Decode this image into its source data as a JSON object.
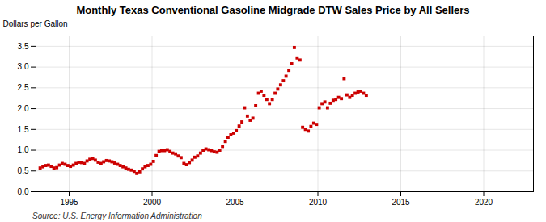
{
  "chart_data": {
    "type": "scatter",
    "title": "Monthly Texas Conventional Gasoline Midgrade DTW Sales Price by All Sellers",
    "ylabel": "Dollars per Gallon",
    "source": "Source: U.S. Energy Information Administration",
    "color": "#CC0000",
    "marker": "square",
    "grid": true,
    "xlim": [
      1993.0,
      2023.0
    ],
    "ylim": [
      0.0,
      3.75
    ],
    "xticks": [
      1995,
      2000,
      2005,
      2010,
      2015,
      2020
    ],
    "yticks": [
      {
        "value": 0.0,
        "label": "0.0"
      },
      0.5,
      {
        "value": 1.0,
        "label": "1.0"
      },
      1.5,
      {
        "value": 2.0,
        "label": "2.0"
      },
      2.5,
      {
        "value": 3.0,
        "label": "3.0"
      },
      3.5
    ],
    "x": [
      1993.25,
      1993.42,
      1993.58,
      1993.75,
      1993.92,
      1994.08,
      1994.25,
      1994.42,
      1994.58,
      1994.75,
      1994.92,
      1995.08,
      1995.25,
      1995.42,
      1995.58,
      1995.75,
      1995.92,
      1996.08,
      1996.25,
      1996.42,
      1996.58,
      1996.75,
      1996.92,
      1997.08,
      1997.25,
      1997.42,
      1997.58,
      1997.75,
      1997.92,
      1998.08,
      1998.25,
      1998.42,
      1998.58,
      1998.75,
      1998.92,
      1999.08,
      1999.25,
      1999.42,
      1999.58,
      1999.75,
      1999.92,
      2000.08,
      2000.25,
      2000.42,
      2000.58,
      2000.75,
      2000.92,
      2001.08,
      2001.25,
      2001.42,
      2001.58,
      2001.75,
      2001.92,
      2002.08,
      2002.25,
      2002.42,
      2002.58,
      2002.75,
      2002.92,
      2003.08,
      2003.25,
      2003.42,
      2003.58,
      2003.75,
      2003.92,
      2004.08,
      2004.25,
      2004.42,
      2004.58,
      2004.75,
      2004.92,
      2005.08,
      2005.25,
      2005.42,
      2005.58,
      2005.75,
      2005.92,
      2006.08,
      2006.25,
      2006.42,
      2006.58,
      2006.75,
      2006.92,
      2007.08,
      2007.25,
      2007.42,
      2007.58,
      2007.75,
      2007.92,
      2008.08,
      2008.25,
      2008.42,
      2008.58,
      2008.75,
      2008.92,
      2009.08,
      2009.25,
      2009.42,
      2009.58,
      2009.75,
      2009.92,
      2010.08,
      2010.25,
      2010.42,
      2010.58,
      2010.75,
      2010.92,
      2011.08,
      2011.25,
      2011.42,
      2011.58,
      2011.75,
      2011.92,
      2012.08,
      2012.25,
      2012.42,
      2012.58,
      2012.75,
      2012.92
    ],
    "values": [
      0.57,
      0.6,
      0.63,
      0.64,
      0.61,
      0.57,
      0.58,
      0.64,
      0.68,
      0.66,
      0.63,
      0.61,
      0.64,
      0.68,
      0.71,
      0.7,
      0.68,
      0.74,
      0.78,
      0.8,
      0.76,
      0.71,
      0.68,
      0.72,
      0.75,
      0.74,
      0.72,
      0.69,
      0.66,
      0.63,
      0.6,
      0.57,
      0.54,
      0.52,
      0.49,
      0.44,
      0.48,
      0.55,
      0.6,
      0.63,
      0.66,
      0.73,
      0.87,
      0.97,
      0.99,
      0.99,
      1.01,
      0.97,
      0.93,
      0.91,
      0.86,
      0.82,
      0.68,
      0.65,
      0.7,
      0.76,
      0.83,
      0.86,
      0.93,
      1.0,
      1.03,
      1.01,
      0.99,
      0.96,
      0.95,
      1.0,
      1.09,
      1.21,
      1.31,
      1.37,
      1.41,
      1.47,
      1.58,
      1.68,
      2.02,
      1.82,
      1.72,
      1.77,
      2.07,
      2.37,
      2.42,
      2.32,
      2.22,
      2.12,
      2.22,
      2.37,
      2.47,
      2.57,
      2.67,
      2.78,
      2.92,
      3.08,
      3.47,
      3.22,
      3.17,
      1.55,
      1.5,
      1.46,
      1.57,
      1.65,
      1.62,
      2.02,
      2.12,
      2.16,
      2.02,
      2.13,
      2.2,
      2.22,
      2.27,
      2.24,
      2.72,
      2.33,
      2.27,
      2.32,
      2.37,
      2.4,
      2.42,
      2.37,
      2.32
    ]
  }
}
